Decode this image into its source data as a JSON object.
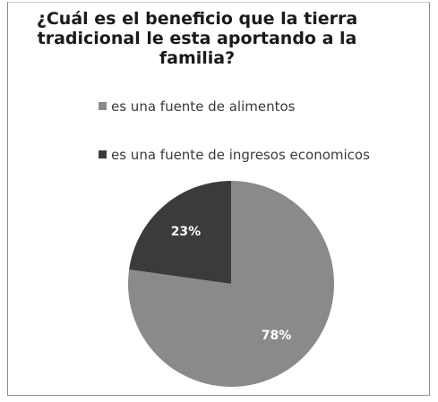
{
  "chart_data": {
    "type": "pie",
    "title": "¿Cuál es el beneficio que la tierra tradicional le esta aportando a la familia?",
    "title_lines": [
      "¿Cuál es el beneficio que la tierra",
      "tradicional le esta aportando a la",
      "familia?"
    ],
    "slices": [
      {
        "label": "es una fuente de alimentos",
        "value": 78,
        "display": "78%",
        "color": "#8a8a8a"
      },
      {
        "label": "es una fuente de ingresos economicos",
        "value": 23,
        "display": "23%",
        "color": "#3b3b3b"
      }
    ],
    "legend_position": "top",
    "label_color": "#ffffff"
  }
}
